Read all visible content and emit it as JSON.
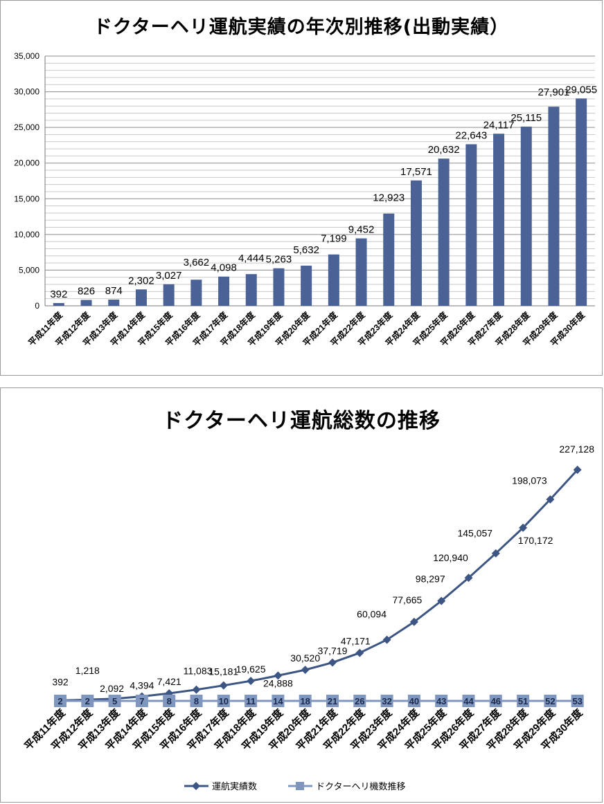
{
  "chart_data": [
    {
      "type": "bar",
      "title": "ドクターヘリ運航実績の年次別推移(出動実績）",
      "categories": [
        "平成11年度",
        "平成12年度",
        "平成13年度",
        "平成14年度",
        "平成15年度",
        "平成16年度",
        "平成17年度",
        "平成18年度",
        "平成19年度",
        "平成20年度",
        "平成21年度",
        "平成22年度",
        "平成23年度",
        "平成24年度",
        "平成25年度",
        "平成26年度",
        "平成27年度",
        "平成28年度",
        "平成29年度",
        "平成30年度"
      ],
      "values": [
        392,
        826,
        874,
        2302,
        3027,
        3662,
        4098,
        4444,
        5263,
        5632,
        7199,
        9452,
        12923,
        17571,
        20632,
        22643,
        24117,
        25115,
        27901,
        29055
      ],
      "labels": [
        "392",
        "826",
        "874",
        "2,302",
        "3,027",
        "3,662",
        "4,098",
        "4,444",
        "5,263",
        "5,632",
        "7,199",
        "9,452",
        "12,923",
        "17,571",
        "20,632",
        "22,643",
        "24,117",
        "25,115",
        "27,901",
        "29,055"
      ],
      "ylim": [
        0,
        35000
      ],
      "yticks": [
        "0",
        "5,000",
        "10,000",
        "15,000",
        "20,000",
        "25,000",
        "30,000",
        "35,000"
      ],
      "grid": true,
      "color": "#4a6296"
    },
    {
      "type": "line",
      "title": "ドクターヘリ運航総数の推移",
      "categories": [
        "平成11年度",
        "平成12年度",
        "平成13年度",
        "平成14年度",
        "平成15年度",
        "平成16年度",
        "平成17年度",
        "平成18年度",
        "平成19年度",
        "平成20年度",
        "平成21年度",
        "平成22年度",
        "平成23年度",
        "平成24年度",
        "平成25年度",
        "平成26年度",
        "平成27年度",
        "平成28年度",
        "平成29年度",
        "平成30年度"
      ],
      "series": [
        {
          "name": "運航実績数",
          "values": [
            392,
            1218,
            2092,
            4394,
            7421,
            11083,
            15181,
            19625,
            24888,
            30520,
            37719,
            47171,
            60094,
            77665,
            98297,
            120940,
            145057,
            170172,
            198073,
            227128
          ],
          "labels": [
            "392",
            "1,218",
            "2,092",
            "4,394",
            "7,421",
            "11,083",
            "15,181",
            "19,625",
            "24,888",
            "30,520",
            "37,719",
            "47,171",
            "60,094",
            "77,665",
            "98,297",
            "120,940",
            "145,057",
            "170,172",
            "198,073",
            "227,128"
          ],
          "color": "#3d5583",
          "marker": "diamond"
        },
        {
          "name": "ドクターヘリ機数推移",
          "values": [
            2,
            2,
            5,
            7,
            8,
            8,
            10,
            11,
            14,
            18,
            21,
            26,
            32,
            40,
            43,
            44,
            46,
            51,
            52,
            53
          ],
          "labels": [
            "2",
            "2",
            "5",
            "7",
            "8",
            "8",
            "10",
            "11",
            "14",
            "18",
            "21",
            "26",
            "32",
            "40",
            "43",
            "44",
            "46",
            "51",
            "52",
            "53"
          ],
          "color": "#7f96bf",
          "marker": "square"
        }
      ],
      "legend": "bottom"
    }
  ]
}
